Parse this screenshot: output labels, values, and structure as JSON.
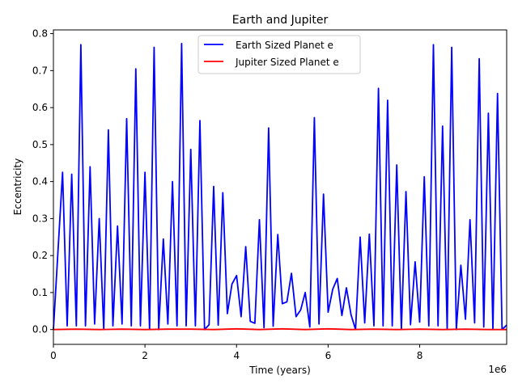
{
  "chart_data": {
    "type": "line",
    "title": "Earth and Jupiter",
    "xlabel": "Time (years)",
    "ylabel": "Eccentricity",
    "x_offset_label": "1e6",
    "xlim": [
      0,
      9.9
    ],
    "ylim": [
      -0.04,
      0.81
    ],
    "x_ticks": [
      0,
      2,
      4,
      6,
      8
    ],
    "y_ticks": [
      0.0,
      0.1,
      0.2,
      0.3,
      0.4,
      0.5,
      0.6,
      0.7,
      0.8
    ],
    "x_tick_labels": [
      "0",
      "2",
      "4",
      "6",
      "8"
    ],
    "y_tick_labels": [
      "0.0",
      "0.1",
      "0.2",
      "0.3",
      "0.4",
      "0.5",
      "0.6",
      "0.7",
      "0.8"
    ],
    "legend_position": "top-right",
    "series": [
      {
        "name": "Earth Sized Planet e",
        "color": "#0000ff",
        "x": [
          0.0,
          0.2,
          0.3,
          0.4,
          0.5,
          0.6,
          0.7,
          0.8,
          0.9,
          1.0,
          1.1,
          1.2,
          1.3,
          1.4,
          1.5,
          1.6,
          1.7,
          1.8,
          1.9,
          2.0,
          2.1,
          2.2,
          2.3,
          2.4,
          2.5,
          2.6,
          2.7,
          2.8,
          2.9,
          3.0,
          3.1,
          3.2,
          3.3,
          3.4,
          3.5,
          3.6,
          3.7,
          3.8,
          3.9,
          4.0,
          4.1,
          4.2,
          4.3,
          4.4,
          4.5,
          4.6,
          4.7,
          4.8,
          4.9,
          5.0,
          5.1,
          5.2,
          5.3,
          5.4,
          5.5,
          5.6,
          5.7,
          5.8,
          5.9,
          6.0,
          6.1,
          6.2,
          6.3,
          6.4,
          6.5,
          6.6,
          6.7,
          6.8,
          6.9,
          7.0,
          7.1,
          7.2,
          7.3,
          7.4,
          7.5,
          7.6,
          7.7,
          7.8,
          7.9,
          8.0,
          8.1,
          8.2,
          8.3,
          8.4,
          8.5,
          8.6,
          8.7,
          8.8,
          8.9,
          9.0,
          9.1,
          9.2,
          9.3,
          9.4,
          9.5,
          9.6,
          9.7,
          9.8,
          9.9
        ],
        "values": [
          0.0,
          0.425,
          0.01,
          0.42,
          0.01,
          0.77,
          0.01,
          0.44,
          0.015,
          0.3,
          0.0,
          0.54,
          0.01,
          0.28,
          0.015,
          0.57,
          0.01,
          0.705,
          0.01,
          0.425,
          0.0,
          0.763,
          0.0,
          0.245,
          0.015,
          0.4,
          0.01,
          0.773,
          0.01,
          0.487,
          0.01,
          0.565,
          0.0,
          0.013,
          0.387,
          0.012,
          0.37,
          0.043,
          0.123,
          0.146,
          0.035,
          0.224,
          0.022,
          0.017,
          0.297,
          0.005,
          0.545,
          0.009,
          0.257,
          0.07,
          0.075,
          0.152,
          0.035,
          0.053,
          0.1,
          0.007,
          0.573,
          0.015,
          0.366,
          0.047,
          0.109,
          0.138,
          0.038,
          0.113,
          0.04,
          0.0,
          0.25,
          0.018,
          0.258,
          0.01,
          0.652,
          0.01,
          0.62,
          0.01,
          0.445,
          0.0,
          0.373,
          0.013,
          0.183,
          0.02,
          0.413,
          0.01,
          0.77,
          0.01,
          0.55,
          0.0,
          0.763,
          0.0,
          0.174,
          0.028,
          0.297,
          0.018,
          0.732,
          0.007,
          0.585,
          0.0,
          0.638,
          0.0,
          0.012
        ]
      },
      {
        "name": "Jupiter Sized Planet e",
        "color": "#ff0000",
        "x": [
          0.0,
          0.5,
          1.0,
          1.5,
          2.0,
          2.5,
          3.0,
          3.5,
          4.0,
          4.5,
          5.0,
          5.5,
          6.0,
          6.5,
          7.0,
          7.5,
          8.0,
          8.5,
          9.0,
          9.5,
          9.9
        ],
        "values": [
          0.0,
          0.001,
          0.0,
          0.001,
          0.0,
          0.001,
          0.001,
          0.0,
          0.002,
          0.0,
          0.002,
          0.0,
          0.002,
          0.0,
          0.001,
          0.0,
          0.001,
          0.0,
          0.001,
          0.0,
          0.0
        ]
      }
    ]
  }
}
